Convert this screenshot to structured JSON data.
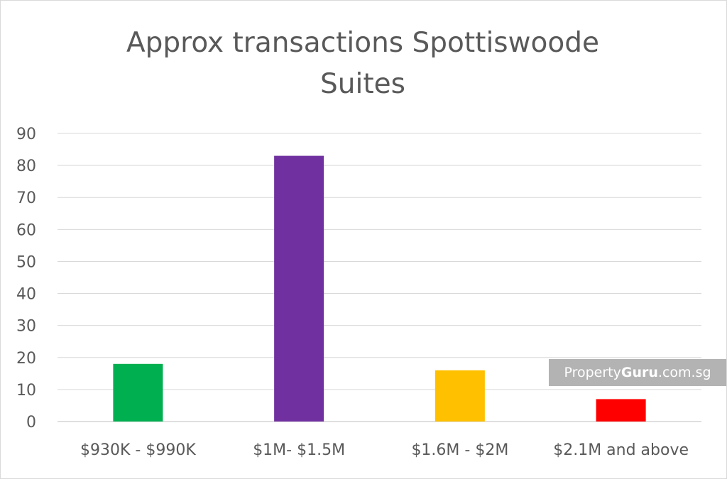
{
  "chart_data": {
    "type": "bar",
    "title_lines": [
      "Approx transactions Spottiswoode",
      "Suites"
    ],
    "categories": [
      "$930K - $990K",
      "$1M- $1.5M",
      "$1.6M - $2M",
      "$2.1M and above"
    ],
    "values": [
      18,
      83,
      16,
      7
    ],
    "colors": [
      "#00b050",
      "#7030a0",
      "#ffc000",
      "#ff0000"
    ],
    "ylim": [
      0,
      90
    ],
    "yticks": [
      0,
      10,
      20,
      30,
      40,
      50,
      60,
      70,
      80,
      90
    ],
    "grid": true,
    "xlabel": "",
    "ylabel": ""
  },
  "watermark": {
    "prefix": "Property",
    "brand": "Guru",
    "suffix": ".com.sg"
  }
}
